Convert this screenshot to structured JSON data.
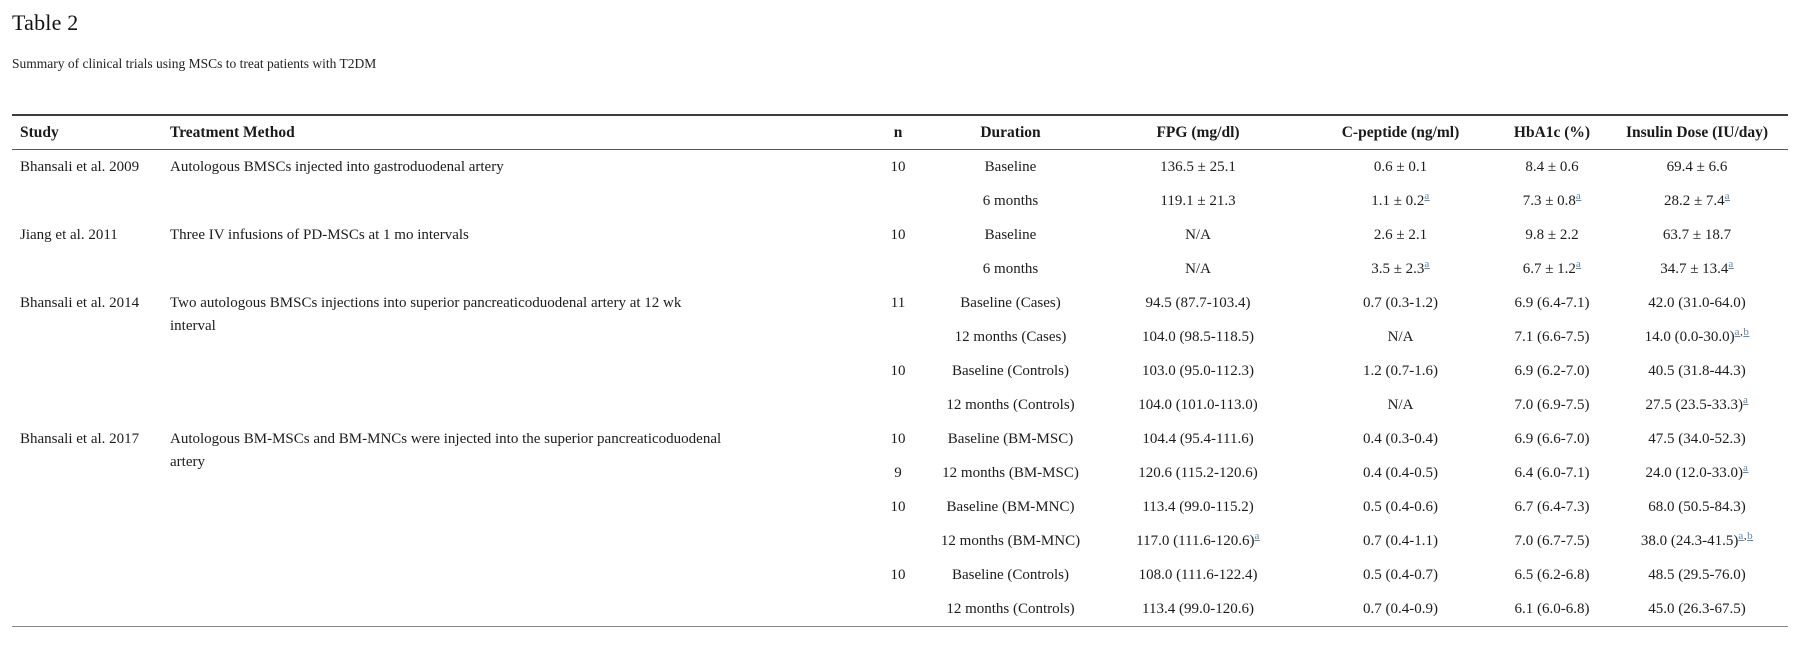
{
  "title": "Table 2",
  "subtitle": "Summary of clinical trials using MSCs to treat patients with T2DM",
  "footnote_link_color": "#5b87ad",
  "table": {
    "headers": [
      "Study",
      "Treatment Method",
      "n",
      "Duration",
      "FPG (mg/dl)",
      "C-peptide (ng/ml)",
      "HbA1c (%)",
      "Insulin Dose (IU/day)"
    ],
    "groups": [
      {
        "study": "Bhansali et al. 2009",
        "treatment": "Autologous BMSCs injected into gastroduodenal artery",
        "rows": [
          {
            "n": "10",
            "duration": {
              "t": "Baseline"
            },
            "fpg": {
              "t": "136.5 ± 25.1"
            },
            "cpeptide": {
              "t": "0.6 ± 0.1"
            },
            "hba1c": {
              "t": "8.4 ± 0.6"
            },
            "insulin": {
              "t": "69.4 ± 6.6"
            }
          },
          {
            "n": "",
            "duration": {
              "t": "6 months"
            },
            "fpg": {
              "t": "119.1 ± 21.3"
            },
            "cpeptide": {
              "t": "1.1 ± 0.2",
              "s": [
                "a"
              ]
            },
            "hba1c": {
              "t": "7.3 ± 0.8",
              "s": [
                "a"
              ]
            },
            "insulin": {
              "t": "28.2 ± 7.4",
              "s": [
                "a"
              ]
            }
          }
        ]
      },
      {
        "study": "Jiang et al. 2011",
        "treatment": "Three IV infusions of PD-MSCs at 1 mo intervals",
        "rows": [
          {
            "n": "10",
            "duration": {
              "t": "Baseline"
            },
            "fpg": {
              "t": "N/A"
            },
            "cpeptide": {
              "t": "2.6 ± 2.1"
            },
            "hba1c": {
              "t": "9.8 ± 2.2"
            },
            "insulin": {
              "t": "63.7 ± 18.7"
            }
          },
          {
            "n": "",
            "duration": {
              "t": "6 months"
            },
            "fpg": {
              "t": "N/A"
            },
            "cpeptide": {
              "t": "3.5 ± 2.3",
              "s": [
                "a"
              ]
            },
            "hba1c": {
              "t": "6.7 ± 1.2",
              "s": [
                "a"
              ]
            },
            "insulin": {
              "t": "34.7 ± 13.4",
              "s": [
                "a"
              ]
            }
          }
        ]
      },
      {
        "study": "Bhansali et al. 2014",
        "treatment": "Two autologous BMSCs injections into superior pancreaticoduodenal artery at 12 wk interval",
        "rows": [
          {
            "n": "11",
            "duration": {
              "t": "Baseline (Cases)"
            },
            "fpg": {
              "t": "94.5 (87.7-103.4)"
            },
            "cpeptide": {
              "t": "0.7 (0.3-1.2)"
            },
            "hba1c": {
              "t": "6.9 (6.4-7.1)"
            },
            "insulin": {
              "t": "42.0 (31.0-64.0)"
            }
          },
          {
            "n": "",
            "duration": {
              "t": "12 months (Cases)"
            },
            "fpg": {
              "t": "104.0 (98.5-118.5)"
            },
            "cpeptide": {
              "t": "N/A"
            },
            "hba1c": {
              "t": "7.1 (6.6-7.5)"
            },
            "insulin": {
              "t": "14.0 (0.0-30.0)",
              "s": [
                "a",
                "b"
              ]
            }
          },
          {
            "n": "10",
            "duration": {
              "t": "Baseline (Controls)"
            },
            "fpg": {
              "t": "103.0 (95.0-112.3)"
            },
            "cpeptide": {
              "t": "1.2 (0.7-1.6)"
            },
            "hba1c": {
              "t": "6.9 (6.2-7.0)"
            },
            "insulin": {
              "t": "40.5 (31.8-44.3)"
            }
          },
          {
            "n": "",
            "duration": {
              "t": "12 months (Controls)"
            },
            "fpg": {
              "t": "104.0 (101.0-113.0)"
            },
            "cpeptide": {
              "t": "N/A"
            },
            "hba1c": {
              "t": "7.0 (6.9-7.5)"
            },
            "insulin": {
              "t": "27.5 (23.5-33.3)",
              "s": [
                "a"
              ]
            }
          }
        ]
      },
      {
        "study": "Bhansali et al. 2017",
        "treatment": "Autologous BM-MSCs and BM-MNCs were injected into the superior pancreaticoduodenal artery",
        "rows": [
          {
            "n": "10",
            "duration": {
              "t": "Baseline (BM-MSC)"
            },
            "fpg": {
              "t": "104.4 (95.4-111.6)"
            },
            "cpeptide": {
              "t": "0.4 (0.3-0.4)"
            },
            "hba1c": {
              "t": "6.9 (6.6-7.0)"
            },
            "insulin": {
              "t": "47.5 (34.0-52.3)"
            }
          },
          {
            "n": "9",
            "duration": {
              "t": "12 months (BM-MSC)"
            },
            "fpg": {
              "t": "120.6 (115.2-120.6)"
            },
            "cpeptide": {
              "t": "0.4 (0.4-0.5)"
            },
            "hba1c": {
              "t": "6.4 (6.0-7.1)"
            },
            "insulin": {
              "t": "24.0 (12.0-33.0)",
              "s": [
                "a"
              ]
            }
          },
          {
            "n": "10",
            "duration": {
              "t": "Baseline (BM-MNC)"
            },
            "fpg": {
              "t": "113.4 (99.0-115.2)"
            },
            "cpeptide": {
              "t": "0.5 (0.4-0.6)"
            },
            "hba1c": {
              "t": "6.7 (6.4-7.3)"
            },
            "insulin": {
              "t": "68.0 (50.5-84.3)"
            }
          },
          {
            "n": "",
            "duration": {
              "t": "12 months (BM-MNC)"
            },
            "fpg": {
              "t": "117.0 (111.6-120.6)",
              "s": [
                "a"
              ]
            },
            "cpeptide": {
              "t": "0.7 (0.4-1.1)"
            },
            "hba1c": {
              "t": "7.0 (6.7-7.5)"
            },
            "insulin": {
              "t": "38.0 (24.3-41.5)",
              "s": [
                "a",
                "b"
              ]
            }
          },
          {
            "n": "10",
            "duration": {
              "t": "Baseline (Controls)"
            },
            "fpg": {
              "t": "108.0 (111.6-122.4)"
            },
            "cpeptide": {
              "t": "0.5 (0.4-0.7)"
            },
            "hba1c": {
              "t": "6.5 (6.2-6.8)"
            },
            "insulin": {
              "t": "48.5 (29.5-76.0)"
            }
          },
          {
            "n": "",
            "duration": {
              "t": "12 months (Controls)"
            },
            "fpg": {
              "t": "113.4 (99.0-120.6)"
            },
            "cpeptide": {
              "t": "0.7 (0.4-0.9)"
            },
            "hba1c": {
              "t": "6.1 (6.0-6.8)"
            },
            "insulin": {
              "t": "45.0 (26.3-67.5)"
            }
          }
        ]
      }
    ]
  }
}
